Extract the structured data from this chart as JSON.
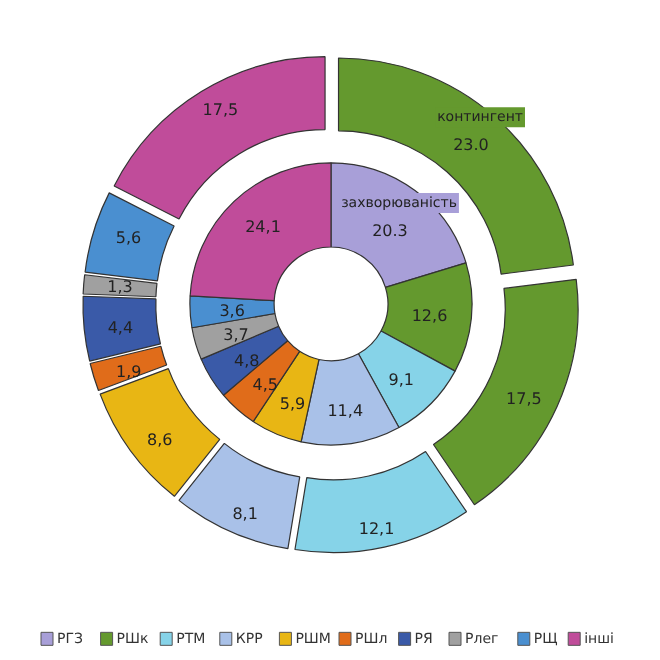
{
  "chart_data": {
    "type": "donut",
    "categories": [
      "РГЗ",
      "РШк",
      "РТМ",
      "КРР",
      "РШМ",
      "РШл",
      "РЯ",
      "Рлег",
      "РЩ",
      "інші"
    ],
    "colors": [
      "#a89fd8",
      "#64992e",
      "#86d3e8",
      "#a9c1e8",
      "#e8b614",
      "#e06c1a",
      "#3a5aa8",
      "#a0a0a0",
      "#4a8fd0",
      "#c04c9a"
    ],
    "series": [
      {
        "name": "захворюваність",
        "values": [
          20.3,
          12.6,
          9.1,
          11.4,
          5.9,
          4.5,
          4.8,
          3.7,
          3.6,
          24.1
        ],
        "value_labels": [
          "20.3",
          "12,6",
          "9,1",
          "11,4",
          "5,9",
          "4,5",
          "4,8",
          "3,7",
          "3,6",
          "24,1"
        ],
        "colors": [
          "#a89fd8",
          "#64992e",
          "#86d3e8",
          "#a9c1e8",
          "#e8b614",
          "#e06c1a",
          "#3a5aa8",
          "#a0a0a0",
          "#4a8fd0",
          "#c04c9a"
        ]
      },
      {
        "name": "контингент",
        "values": [
          23.0,
          17.5,
          12.1,
          8.1,
          8.6,
          1.9,
          4.4,
          1.3,
          5.6,
          17.5
        ],
        "value_labels": [
          "23.0",
          "17,5",
          "12,1",
          "8,1",
          "8,6",
          "1,9",
          "4,4",
          "1,3",
          "5,6",
          "17,5"
        ],
        "colors": [
          "#64992e",
          "#64992e",
          "#86d3e8",
          "#a9c1e8",
          "#e8b614",
          "#e06c1a",
          "#3a5aa8",
          "#a0a0a0",
          "#4a8fd0",
          "#c04c9a"
        ]
      }
    ],
    "legend": "bottom"
  }
}
